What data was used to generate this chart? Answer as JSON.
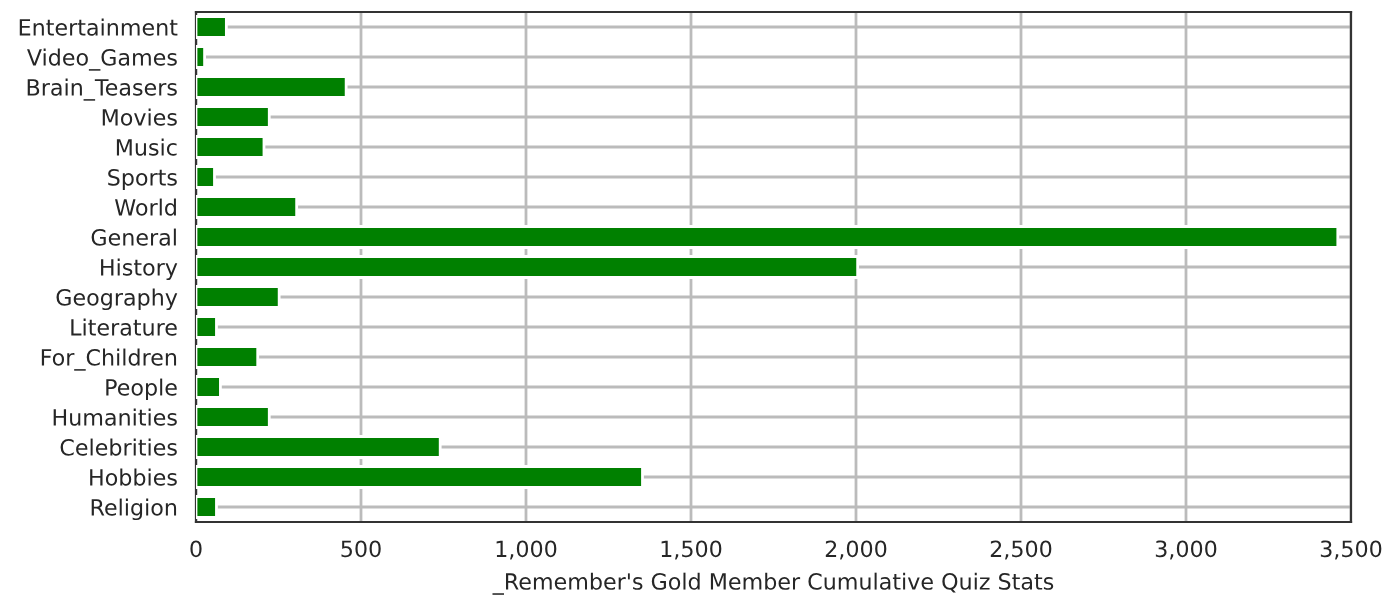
{
  "chart_data": {
    "type": "bar",
    "orientation": "horizontal",
    "xlabel": "_Remember's Gold Member Cumulative Quiz Stats",
    "categories": [
      "Entertainment",
      "Video_Games",
      "Brain_Teasers",
      "Movies",
      "Music",
      "Sports",
      "World",
      "General",
      "History",
      "Geography",
      "Literature",
      "For_Children",
      "People",
      "Humanities",
      "Celebrities",
      "Hobbies",
      "Religion"
    ],
    "values": [
      92,
      26,
      455,
      222,
      206,
      56,
      305,
      3460,
      2005,
      252,
      62,
      187,
      74,
      222,
      740,
      1353,
      62
    ],
    "color": "#008000",
    "xlim": [
      0,
      3500
    ],
    "xticks": [
      {
        "value": 0,
        "label": "0"
      },
      {
        "value": 500,
        "label": "500"
      },
      {
        "value": 1000,
        "label": "1,000"
      },
      {
        "value": 1500,
        "label": "1,500"
      },
      {
        "value": 2000,
        "label": "2,000"
      },
      {
        "value": 2500,
        "label": "2,500"
      },
      {
        "value": 3000,
        "label": "3,000"
      },
      {
        "value": 3500,
        "label": "3,500"
      }
    ],
    "grid": true
  }
}
